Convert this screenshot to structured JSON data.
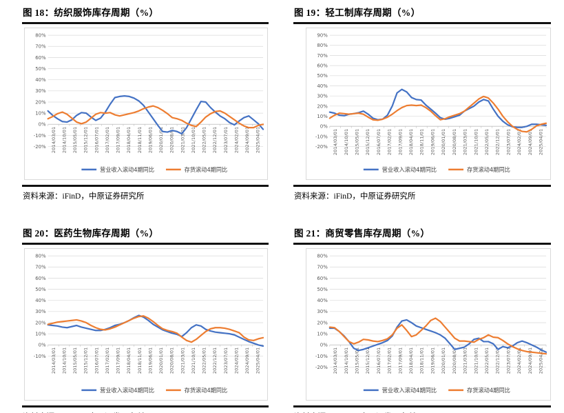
{
  "source_note": "资料来源：iFinD，中原证券研究所",
  "palette": {
    "revenue_blue": "#4472C4",
    "inventory_orange": "#ED7D31",
    "grid_gray": "#D9D9D9",
    "axis_gray": "#BFBFBF",
    "tick_text": "#595959",
    "legend_text": "#404040",
    "rule_black": "#111111"
  },
  "chart_data": [
    {
      "type": "line",
      "title": "图 18：纺织服饰库存周期（%）",
      "ylim": [
        -20,
        80
      ],
      "ytick_step": 10,
      "ytick_format": "percent",
      "grid": true,
      "legend_position": "bottom",
      "x_tick_labels": [
        "2014/03/01",
        "2014/10/01",
        "2015/05/01",
        "2015/12/01",
        "2016/07/01",
        "2017/02/01",
        "2017/09/01",
        "2018/04/01",
        "2018/11/01",
        "2019/06/01",
        "2020/01/01",
        "2020/08/01",
        "2021/03/01",
        "2021/10/01",
        "2022/05/01",
        "2022/12/01",
        "2023/07/01",
        "2024/02/01",
        "2024/09/01",
        "2025/04/01"
      ],
      "series": [
        {
          "name": "营业收入滚动4期同比",
          "color": "#4472C4",
          "values": [
            12,
            8,
            5,
            2.5,
            2,
            4,
            8,
            10.5,
            10,
            6.5,
            3.5,
            5.5,
            11,
            18,
            24,
            25,
            25.5,
            25,
            23.5,
            21,
            17,
            11,
            5,
            -1,
            -6.5,
            -7,
            -5.5,
            -6.5,
            -8.5,
            -3,
            5,
            13,
            20.5,
            20,
            15,
            11,
            7.5,
            5,
            1.5,
            -0.5,
            3,
            6,
            7.5,
            4,
            0.5,
            -4.5
          ]
        },
        {
          "name": "存货滚动4期同比",
          "color": "#ED7D31",
          "values": [
            5,
            7,
            9.5,
            11,
            9,
            5.5,
            2,
            0.5,
            2,
            5.5,
            9,
            10.5,
            10,
            10.5,
            8.5,
            7.5,
            8.5,
            9.5,
            10.5,
            12,
            14,
            15.5,
            16.5,
            15,
            12.5,
            9.5,
            6,
            5,
            3.5,
            1,
            -1,
            -2,
            2,
            6.5,
            9.5,
            11.5,
            12,
            10,
            7,
            4,
            1,
            -1.5,
            -3,
            -3,
            -1,
            0
          ]
        }
      ]
    },
    {
      "type": "line",
      "title": "图 19：轻工制库存周期（%）",
      "ylim": [
        -20,
        90
      ],
      "ytick_step": 10,
      "ytick_format": "percent",
      "grid": true,
      "legend_position": "bottom",
      "x_tick_labels": [
        "2014/03/01",
        "2014/10/01",
        "2015/05/01",
        "2015/12/01",
        "2016/07/01",
        "2017/02/01",
        "2017/09/01",
        "2018/04/01",
        "2018/11/01",
        "2019/06/01",
        "2020/01/01",
        "2020/08/01",
        "2021/03/01",
        "2021/10/01",
        "2022/05/01",
        "2022/12/01",
        "2023/07/01",
        "2024/02/01",
        "2024/09/01",
        "2025/04/01"
      ],
      "series": [
        {
          "name": "营业收入滚动4期同比",
          "color": "#4472C4",
          "values": [
            14,
            13,
            11,
            10.5,
            12,
            12.5,
            13.5,
            15,
            12,
            8,
            6.5,
            7,
            11,
            20,
            33,
            36.5,
            34,
            28.5,
            26.5,
            26,
            21,
            17,
            13,
            8.5,
            7,
            8,
            9.5,
            11,
            15,
            17.5,
            20,
            24,
            26.5,
            25,
            17,
            10,
            5,
            1.5,
            -0.5,
            -1,
            -1,
            0,
            2,
            2,
            1.5,
            1
          ]
        },
        {
          "name": "存货滚动4期同比",
          "color": "#ED7D31",
          "values": [
            8,
            11,
            13,
            12.5,
            12,
            12.5,
            13,
            12,
            9,
            6.5,
            6,
            7,
            9,
            12,
            15.5,
            18.5,
            20.5,
            21,
            20.5,
            21,
            18.5,
            15,
            10.5,
            6.5,
            7.5,
            9.5,
            11,
            12.5,
            15,
            19,
            23,
            27,
            29.5,
            28,
            23,
            17,
            10,
            4.5,
            0,
            -3,
            -5,
            -5.5,
            -3,
            0.5,
            2,
            3
          ]
        }
      ]
    },
    {
      "type": "line",
      "title": "图 20：医药生物库存周期（%）",
      "ylim": [
        -10,
        80
      ],
      "ytick_step": 10,
      "ytick_format": "percent",
      "grid": true,
      "legend_position": "bottom",
      "x_tick_labels": [
        "2014/03/01",
        "2014/10/01",
        "2015/05/01",
        "2015/12/01",
        "2016/07/01",
        "2017/02/01",
        "2017/09/01",
        "2018/04/01",
        "2018/11/01",
        "2019/06/01",
        "2020/01/01",
        "2020/08/01",
        "2021/03/01",
        "2021/10/01",
        "2022/05/01",
        "2022/12/01",
        "2023/07/01",
        "2024/02/01",
        "2024/09/01",
        "2025/04/01"
      ],
      "series": [
        {
          "name": "营业收入滚动4期同比",
          "color": "#4472C4",
          "values": [
            18,
            17.5,
            17,
            16,
            15.5,
            16.5,
            17.5,
            16,
            15,
            14,
            13,
            13,
            14,
            15.5,
            17.5,
            18.5,
            20,
            22,
            24.5,
            26.5,
            25,
            22,
            18.5,
            16,
            13.5,
            12,
            10.5,
            9.5,
            7.5,
            11,
            15.5,
            18,
            17,
            14,
            12.5,
            11.5,
            11,
            10.5,
            10,
            9,
            7,
            5,
            3,
            1.5,
            0,
            -1
          ]
        },
        {
          "name": "存货滚动4期同比",
          "color": "#ED7D31",
          "values": [
            18.5,
            19.5,
            20.5,
            21,
            21.5,
            22,
            22.5,
            21.5,
            20,
            17.5,
            15.5,
            14,
            13.5,
            14.5,
            16,
            18,
            20,
            22,
            24,
            25.5,
            26,
            24,
            21,
            17.5,
            14.5,
            13,
            12,
            10.5,
            7,
            4,
            2.5,
            5,
            8.5,
            12,
            14.5,
            15.5,
            15.5,
            15,
            14,
            12.5,
            11,
            7,
            4.5,
            4,
            5.5,
            6.5
          ]
        }
      ]
    },
    {
      "type": "line",
      "title": "图 21：商贸零售库存周期（%）",
      "ylim": [
        -20,
        80
      ],
      "ytick_step": 10,
      "ytick_format": "percent",
      "grid": true,
      "legend_position": "bottom",
      "x_tick_labels": [
        "2014/03/01",
        "2014/10/01",
        "2015/05/01",
        "2015/12/01",
        "2016/07/01",
        "2017/02/01",
        "2017/09/01",
        "2018/04/01",
        "2018/11/01",
        "2019/06/01",
        "2020/01/01",
        "2020/08/01",
        "2021/03/01",
        "2021/10/01",
        "2022/05/01",
        "2022/12/01",
        "2023/07/01",
        "2024/02/01",
        "2024/09/01",
        "2025/04/01"
      ],
      "series": [
        {
          "name": "营业收入滚动4期同比",
          "color": "#4472C4",
          "values": [
            15,
            15,
            12,
            8,
            3,
            -3,
            -5,
            -4,
            -2.5,
            -1,
            0.5,
            2,
            4,
            8,
            16,
            21.5,
            22.5,
            20,
            17,
            15.5,
            14,
            12.5,
            11,
            9,
            6,
            1,
            -4,
            -3,
            -2,
            1,
            5,
            6,
            3,
            3,
            1,
            -4,
            -1.5,
            -2.5,
            -1,
            2,
            3.5,
            2,
            0,
            -2,
            -4.5,
            -6.5
          ]
        },
        {
          "name": "存货滚动4期同比",
          "color": "#ED7D31",
          "values": [
            16,
            15.5,
            12,
            7.5,
            3,
            1,
            2.5,
            5,
            4.5,
            3.5,
            3,
            4,
            5.5,
            9,
            15,
            18,
            13,
            7.5,
            9,
            13,
            17,
            22,
            24,
            21,
            16,
            11,
            6,
            3.5,
            3.5,
            3,
            2.5,
            5,
            6.5,
            9,
            7,
            6.5,
            4,
            1,
            -1.5,
            -3.5,
            -5,
            -6,
            -6.5,
            -7,
            -7.5,
            -8
          ]
        }
      ]
    }
  ]
}
